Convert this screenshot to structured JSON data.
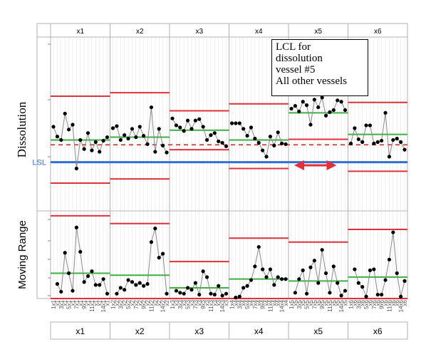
{
  "chart_data": {
    "type": "control-chart",
    "phases": [
      "x1",
      "x2",
      "x3",
      "x4",
      "x5",
      "x6"
    ],
    "samples_per_phase": 15,
    "x_tick_labels": [
      "1",
      "",
      "3",
      "",
      "5",
      "",
      "7",
      "",
      "9",
      "",
      "11",
      "",
      "",
      "14",
      ""
    ],
    "top": {
      "ylabel": "Dissolution",
      "ylim": [
        -0.7,
        1.8
      ],
      "lsl": {
        "label": "LSL",
        "value": 0.0,
        "color": "#2f6fd6"
      },
      "target": {
        "value": 0.25,
        "color": "#cc2222"
      },
      "limits": [
        {
          "center": 0.32,
          "ucl": 0.95,
          "lcl": -0.3
        },
        {
          "center": 0.36,
          "ucl": 1.0,
          "lcl": -0.24
        },
        {
          "center": 0.46,
          "ucl": 0.74,
          "lcl": 0.18
        },
        {
          "center": 0.32,
          "ucl": 0.84,
          "lcl": -0.09
        },
        {
          "center": 0.71,
          "ucl": 1.1,
          "lcl": 0.33
        },
        {
          "center": 0.4,
          "ucl": 0.86,
          "lcl": -0.13
        }
      ],
      "series": [
        [
          0.51,
          0.37,
          0.32,
          0.7,
          0.47,
          0.54,
          -0.09,
          0.32,
          0.19,
          0.42,
          0.17,
          0.29,
          0.15,
          0.31,
          0.36
        ],
        [
          0.49,
          0.52,
          0.32,
          0.39,
          0.34,
          0.48,
          0.36,
          0.51,
          0.38,
          0.26,
          0.79,
          0.15,
          0.48,
          0.24,
          0.14
        ],
        [
          0.63,
          0.53,
          0.5,
          0.45,
          0.6,
          0.48,
          0.6,
          0.62,
          0.51,
          0.32,
          0.39,
          0.42,
          0.3,
          0.28,
          0.23
        ],
        [
          0.56,
          0.56,
          0.56,
          0.48,
          0.38,
          0.5,
          0.34,
          0.28,
          0.17,
          0.08,
          0.37,
          0.24,
          0.43,
          0.27,
          0.26
        ],
        [
          0.77,
          0.81,
          0.73,
          0.87,
          0.82,
          0.54,
          0.9,
          0.79,
          0.93,
          0.67,
          0.72,
          0.75,
          0.89,
          0.87,
          0.75
        ],
        [
          0.27,
          0.49,
          0.33,
          0.29,
          0.53,
          0.53,
          0.27,
          0.29,
          0.31,
          0.71,
          0.08,
          0.32,
          0.34,
          0.29,
          0.18
        ]
      ]
    },
    "bottom": {
      "ylabel": "Moving Range",
      "ylim": [
        0,
        0.9
      ],
      "limits": [
        {
          "center": 0.26,
          "ucl": 0.85
        },
        {
          "center": 0.24,
          "ucl": 0.77
        },
        {
          "center": 0.11,
          "ucl": 0.38
        },
        {
          "center": 0.2,
          "ucl": 0.62
        },
        {
          "center": 0.18,
          "ucl": 0.58
        },
        {
          "center": 0.22,
          "ucl": 0.71
        }
      ],
      "series": [
        [
          null,
          0.15,
          0.07,
          0.47,
          0.26,
          0.08,
          0.73,
          0.48,
          0.17,
          0.23,
          0.28,
          0.14,
          0.14,
          0.2,
          0.05
        ],
        [
          null,
          0.05,
          0.11,
          0.09,
          0.19,
          0.17,
          0.14,
          0.16,
          0.13,
          0.15,
          0.58,
          0.72,
          0.42,
          0.46,
          0.05
        ],
        [
          null,
          0.08,
          0.06,
          0.05,
          0.11,
          0.09,
          0.16,
          0.04,
          0.28,
          0.22,
          0.05,
          0.04,
          0.13,
          0.03,
          0.05
        ],
        [
          null,
          0.01,
          0.02,
          0.11,
          0.13,
          0.19,
          0.33,
          0.53,
          0.3,
          0.22,
          0.3,
          0.14,
          0.22,
          0.2,
          0.2
        ],
        [
          null,
          0.06,
          0.2,
          0.29,
          0.05,
          0.32,
          0.39,
          0.16,
          0.5,
          0.26,
          0.06,
          0.33,
          0.16,
          0.03,
          0.08
        ],
        [
          null,
          0.3,
          0.16,
          0.12,
          0.02,
          0.29,
          0.3,
          0.04,
          0.04,
          0.19,
          0.4,
          0.68,
          0.26,
          0.02,
          0.18
        ]
      ]
    },
    "annotation": {
      "lines": [
        "LCL for",
        "dissolution",
        "vessel #5",
        "All other vessels"
      ],
      "arrow_color": "#e0313a"
    },
    "colors": {
      "limit_red": "#e0313a",
      "center_green": "#3cb043",
      "points": "#000000",
      "connector": "#888888",
      "grid": "#d8d8d8"
    }
  }
}
